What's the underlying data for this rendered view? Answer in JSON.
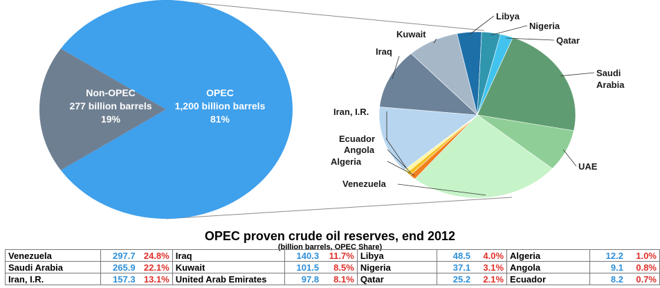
{
  "chart_data": [
    {
      "type": "pie",
      "title": "",
      "unit": "billion barrels",
      "slices": [
        {
          "name": "OPEC",
          "value": 1200,
          "share_label": "1,200 billion barrels",
          "pct_label": "81%",
          "color": "#3fa0ec"
        },
        {
          "name": "Non-OPEC",
          "value": 277,
          "share_label": "277 billion barrels",
          "pct_label": "19%",
          "color": "#6f7f92"
        }
      ]
    },
    {
      "type": "pie",
      "title": "",
      "slices": [
        {
          "name": "Libya",
          "value": 48.5,
          "color": "#1d6fa8"
        },
        {
          "name": "Nigeria",
          "value": 37.1,
          "color": "#2f96ae"
        },
        {
          "name": "Qatar",
          "value": 25.2,
          "color": "#41c3ee"
        },
        {
          "name": "Saudi Arabia",
          "value": 265.9,
          "color": "#5f9c71"
        },
        {
          "name": "UAE",
          "value": 97.8,
          "color": "#8fcf97"
        },
        {
          "name": "Venezuela",
          "value": 297.7,
          "color": "#c6f3c8"
        },
        {
          "name": "Algeria",
          "value": 12.2,
          "color": "#f07f1e"
        },
        {
          "name": "Angola",
          "value": 9.1,
          "color": "#f4c022"
        },
        {
          "name": "Ecuador",
          "value": 8.2,
          "color": "#fff6a0"
        },
        {
          "name": "Iran, I.R.",
          "value": 157.3,
          "color": "#b7d5ef"
        },
        {
          "name": "Iraq",
          "value": 140.3,
          "color": "#6b8299"
        },
        {
          "name": "Kuwait",
          "value": 101.5,
          "color": "#a6b8c8"
        }
      ]
    }
  ],
  "table": {
    "title": "OPEC proven crude oil reserves, end 2012",
    "subtitle": "(billion barrels, OPEC Share)",
    "rows": [
      [
        {
          "name": "Venezuela",
          "value": "297.7",
          "share": "24.8%"
        },
        {
          "name": "Iraq",
          "value": "140.3",
          "share": "11.7%"
        },
        {
          "name": "Libya",
          "value": "48.5",
          "share": "4.0%"
        },
        {
          "name": "Algeria",
          "value": "12.2",
          "share": "1.0%"
        }
      ],
      [
        {
          "name": "Saudi Arabia",
          "value": "265.9",
          "share": "22.1%"
        },
        {
          "name": "Kuwait",
          "value": "101.5",
          "share": "8.5%"
        },
        {
          "name": "Nigeria",
          "value": "37.1",
          "share": "3.1%"
        },
        {
          "name": "Angola",
          "value": "9.1",
          "share": "0.8%"
        }
      ],
      [
        {
          "name": "Iran, I.R.",
          "value": "157.3",
          "share": "13.1%"
        },
        {
          "name": "United Arab Emirates",
          "value": "97.8",
          "share": "8.1%"
        },
        {
          "name": "Qatar",
          "value": "25.2",
          "share": "2.1%"
        },
        {
          "name": "Ecuador",
          "value": "8.2",
          "share": "0.7%"
        }
      ]
    ]
  }
}
